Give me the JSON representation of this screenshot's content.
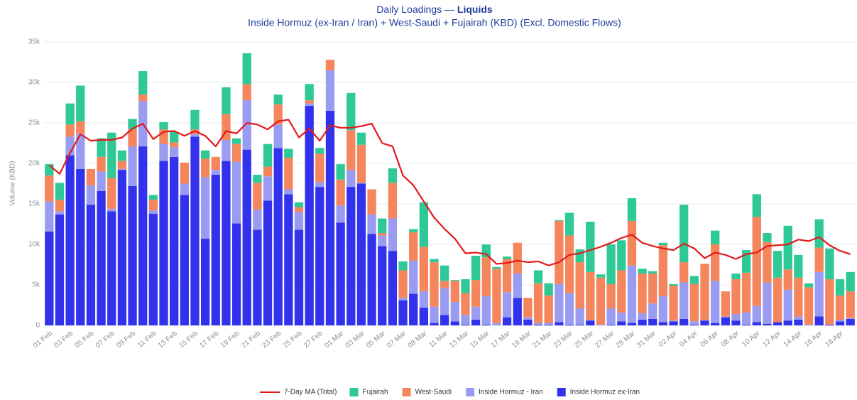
{
  "chart_data": {
    "type": "bar",
    "stacked": true,
    "title": "Daily Loadings —",
    "title_emphasis": "Liquids",
    "subtitle": "Inside Hormuz (ex-Iran / Iran) + West-Saudi + Fujairah (KBD) (Excl. Domestic Flows)",
    "y_label": "Volume (KBD)",
    "grid": true,
    "legend": "bottom",
    "ylim": [
      0,
      35000
    ],
    "yticks": [
      0,
      {
        "value": 5000,
        "label": "5k"
      },
      {
        "value": 10000,
        "label": "10k"
      },
      {
        "value": 15000,
        "label": "15k"
      },
      {
        "value": 20000,
        "label": "20k"
      },
      {
        "value": 25000,
        "label": "25k"
      },
      {
        "value": 30000,
        "label": "30k"
      },
      {
        "value": 35000,
        "label": "35k"
      }
    ],
    "categories": [
      "01 Feb",
      null,
      "03 Feb",
      null,
      "05 Feb",
      null,
      "07 Feb",
      null,
      "09 Feb",
      null,
      "11 Feb",
      null,
      "13 Feb",
      null,
      "15 Feb",
      null,
      "17 Feb",
      null,
      "19 Feb",
      null,
      "21 Feb",
      null,
      "23 Feb",
      null,
      "25 Feb",
      null,
      "27 Feb",
      null,
      "01 Mar",
      null,
      "03 Mar",
      null,
      "05 Mar",
      null,
      "07 Mar",
      null,
      "09 Mar",
      null,
      "11 Mar",
      null,
      "13 Mar",
      null,
      "15 Mar",
      null,
      "17 Mar",
      null,
      "19 Mar",
      null,
      "21 Mar",
      null,
      "23 Mar",
      null,
      "25 Mar",
      null,
      "27 Mar",
      null,
      "29 Mar",
      null,
      "31 Mar",
      null,
      "02 Apr",
      null,
      "04 Apr",
      null,
      "06 Apr",
      null,
      "08 Apr",
      null,
      "10 Apr",
      null,
      "12 Apr",
      null,
      "14 Apr",
      null,
      "16 Apr",
      null,
      "18 Apr",
      null
    ],
    "series": [
      {
        "name": "Inside Hormuz ex-Iran",
        "color": "#3232ec",
        "values": [
          11600,
          13700,
          21000,
          19300,
          14900,
          16600,
          14100,
          19200,
          17200,
          22100,
          13800,
          20300,
          20800,
          16100,
          23300,
          10700,
          18600,
          20300,
          12600,
          21700,
          11800,
          15400,
          21900,
          16200,
          11800,
          27100,
          17100,
          26500,
          12700,
          17100,
          17500,
          11300,
          9800,
          9200,
          3100,
          3900,
          2200,
          300,
          1300,
          500,
          100,
          700,
          100,
          0,
          1000,
          3400,
          700,
          100,
          100,
          400,
          100,
          100,
          600,
          0,
          100,
          500,
          300,
          700,
          800,
          400,
          500,
          800,
          100,
          600,
          300,
          1000,
          600,
          100,
          400,
          200,
          400,
          600,
          700,
          0,
          1100,
          100,
          500,
          800
        ]
      },
      {
        "name": "Inside Hormuz - Iran",
        "color": "#9a9cf2",
        "values": [
          3700,
          400,
          2300,
          4400,
          2400,
          2400,
          300,
          100,
          4900,
          5600,
          400,
          2100,
          1200,
          1400,
          300,
          7600,
          600,
          2600,
          7600,
          6100,
          2500,
          3000,
          2900,
          600,
          2200,
          300,
          600,
          5000,
          2100,
          2100,
          100,
          2400,
          1300,
          4000,
          300,
          4100,
          2000,
          2000,
          3300,
          2400,
          1200,
          1600,
          3500,
          300,
          3100,
          3000,
          300,
          200,
          200,
          4700,
          3900,
          2000,
          100,
          100,
          2000,
          1100,
          7100,
          800,
          1900,
          3200,
          100,
          4500,
          400,
          100,
          5200,
          100,
          800,
          1500,
          2000,
          5100,
          0,
          3800,
          400,
          100,
          5500,
          0,
          200,
          100
        ]
      },
      {
        "name": "West-Saudi",
        "color": "#f5855c",
        "values": [
          3200,
          1400,
          1500,
          1500,
          2000,
          1800,
          3800,
          1000,
          2100,
          800,
          1300,
          1800,
          600,
          2600,
          600,
          2300,
          1600,
          3200,
          2200,
          2000,
          3300,
          1200,
          2500,
          3900,
          600,
          400,
          3500,
          1300,
          3200,
          4900,
          4700,
          3100,
          300,
          4400,
          3400,
          3500,
          5500,
          5500,
          900,
          2600,
          2700,
          3300,
          4800,
          6700,
          4100,
          3800,
          2400,
          4900,
          3400,
          7800,
          7100,
          5700,
          5900,
          5800,
          3000,
          5200,
          5500,
          4900,
          3700,
          6300,
          4300,
          2500,
          4600,
          6900,
          4500,
          3100,
          4300,
          4900,
          11000,
          5000,
          5500,
          2500,
          4800,
          4600,
          3000,
          5600,
          3000,
          3300
        ]
      },
      {
        "name": "Fujairah",
        "color": "#2ec997",
        "values": [
          1400,
          2100,
          2600,
          4400,
          0,
          2300,
          5600,
          1300,
          1300,
          2900,
          600,
          900,
          1300,
          0,
          2400,
          1000,
          0,
          3300,
          700,
          3800,
          1000,
          2800,
          1200,
          1100,
          600,
          2000,
          700,
          0,
          1900,
          4600,
          1500,
          0,
          1800,
          1800,
          1100,
          400,
          5500,
          400,
          1900,
          100,
          1700,
          3000,
          1600,
          200,
          300,
          0,
          0,
          1600,
          1500,
          100,
          2800,
          1600,
          6200,
          400,
          4900,
          3700,
          2800,
          600,
          300,
          300,
          200,
          7100,
          1000,
          0,
          1700,
          0,
          700,
          2800,
          2800,
          1100,
          3300,
          5400,
          2800,
          500,
          3500,
          3800,
          2000,
          2400
        ]
      }
    ],
    "line": {
      "name": "7-Day MA (Total)",
      "color": "#e3191c",
      "values": [
        19800,
        18700,
        21300,
        23600,
        22800,
        22900,
        22900,
        23200,
        24300,
        24900,
        23000,
        23900,
        24000,
        23400,
        24000,
        23400,
        22100,
        24000,
        23700,
        25000,
        24800,
        24200,
        25200,
        25400,
        23200,
        24300,
        22800,
        24700,
        24400,
        24400,
        24600,
        24900,
        22500,
        22100,
        18500,
        17300,
        15300,
        13300,
        11900,
        10700,
        8900,
        9000,
        8800,
        7600,
        7700,
        8000,
        7800,
        7900,
        7400,
        7800,
        8700,
        8900,
        9300,
        9700,
        10200,
        10800,
        11200,
        10200,
        9800,
        9500,
        9300,
        10100,
        9500,
        8300,
        9000,
        8700,
        8200,
        8800,
        9000,
        9800,
        9900,
        10000,
        10600,
        10400,
        10900,
        9900,
        9200,
        8800
      ]
    }
  }
}
